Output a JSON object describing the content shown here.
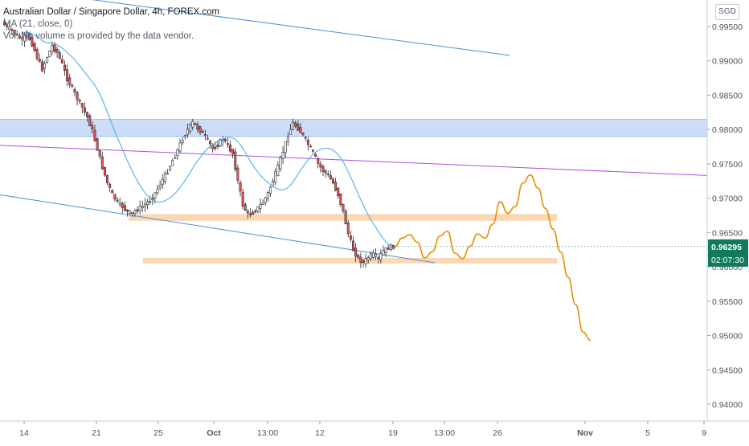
{
  "header": {
    "title": "Australian Dollar / Singapore Dollar, 4h, FOREX.com",
    "indicator": "(21, close, 0)",
    "volume_note": "Vol: No volume is provided by the data vendor."
  },
  "currency": "SGD",
  "price_label": {
    "value": "0.96295",
    "countdown": "02:07:30"
  },
  "chart_data": {
    "type": "candlestick",
    "y_axis": {
      "ticks": [
        0.995,
        0.99,
        0.985,
        0.98,
        0.975,
        0.97,
        0.965,
        0.96,
        0.955,
        0.95,
        0.945,
        0.94
      ],
      "ylim": [
        0.9375,
        0.9985
      ],
      "labels": [
        "0.99500",
        "0.99000",
        "0.98500",
        "0.98000",
        "0.97500",
        "0.97000",
        "0.96500",
        "0.96000",
        "0.95500",
        "0.95000",
        "0.94500",
        "0.94000"
      ]
    },
    "x_axis": {
      "labels": [
        "14",
        "21",
        "25",
        "Oct",
        "13:00",
        "12",
        "19",
        "13:00",
        "26",
        "Nov",
        "5",
        "9"
      ]
    },
    "zones": [
      {
        "kind": "resistance",
        "from": 0.979,
        "to": 0.9815
      },
      {
        "kind": "support-upper",
        "from": 0.9667,
        "to": 0.9677
      },
      {
        "kind": "support-lower",
        "from": 0.9605,
        "to": 0.9613
      }
    ],
    "price_path": [
      0.9957,
      0.9948,
      0.9944,
      0.9936,
      0.9931,
      0.9939,
      0.9925,
      0.9905,
      0.9888,
      0.9906,
      0.9922,
      0.9912,
      0.9895,
      0.9874,
      0.986,
      0.9845,
      0.9832,
      0.9818,
      0.9798,
      0.9772,
      0.9745,
      0.9722,
      0.9705,
      0.9694,
      0.9688,
      0.968,
      0.9678,
      0.9684,
      0.9688,
      0.9694,
      0.9701,
      0.9714,
      0.9727,
      0.974,
      0.9755,
      0.977,
      0.9787,
      0.98,
      0.981,
      0.9802,
      0.9795,
      0.9784,
      0.9772,
      0.9778,
      0.9787,
      0.9776,
      0.9765,
      0.9725,
      0.969,
      0.9676,
      0.9679,
      0.9686,
      0.9694,
      0.9707,
      0.9726,
      0.9745,
      0.9768,
      0.9792,
      0.9809,
      0.9802,
      0.9791,
      0.9778,
      0.9766,
      0.975,
      0.974,
      0.9733,
      0.9722,
      0.9705,
      0.968,
      0.9648,
      0.9625,
      0.9612,
      0.9606,
      0.9614,
      0.9618,
      0.9612,
      0.9623,
      0.9628,
      0.96295
    ],
    "ma_label": "(21, close, 0)",
    "projection": [
      0.9629,
      0.9642,
      0.9647,
      0.9636,
      0.9613,
      0.9622,
      0.9645,
      0.9652,
      0.962,
      0.9612,
      0.963,
      0.9648,
      0.9642,
      0.9662,
      0.9695,
      0.9678,
      0.9688,
      0.9722,
      0.9734,
      0.9715,
      0.9685,
      0.9655,
      0.9622,
      0.9585,
      0.9545,
      0.9505,
      0.9493
    ],
    "trendlines": [
      "upper-channel",
      "purple-trend",
      "lower-channel"
    ]
  }
}
